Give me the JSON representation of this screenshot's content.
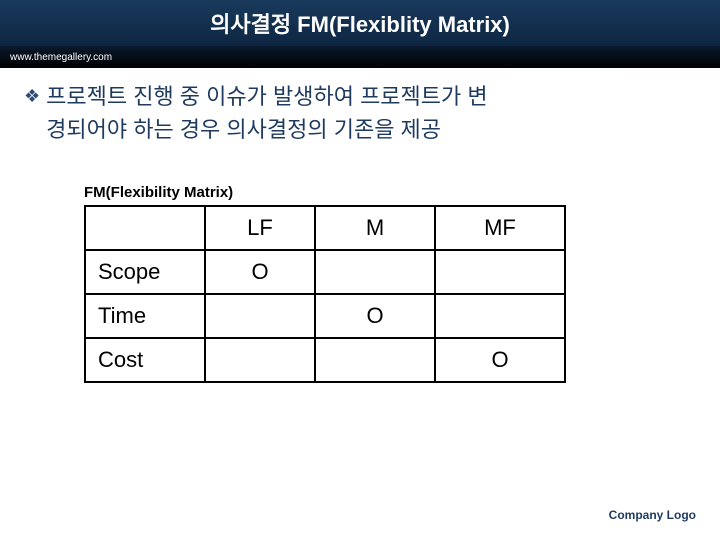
{
  "header": {
    "title": "의사결정 FM(Flexiblity Matrix)",
    "url": "www.themegallery.com"
  },
  "description": {
    "line1": "프로젝트 진행 중 이슈가 발생하여 프로젝트가 변",
    "line2": "경되어야 하는 경우 의사결정의 기존을 제공"
  },
  "table": {
    "title": "FM(Flexibility Matrix)",
    "columns": [
      "LF",
      "M",
      "MF"
    ],
    "rows": [
      {
        "label": "Scope",
        "values": [
          "O",
          "",
          ""
        ]
      },
      {
        "label": "Time",
        "values": [
          "",
          "O",
          ""
        ]
      },
      {
        "label": "Cost",
        "values": [
          "",
          "",
          "O"
        ]
      }
    ],
    "border_color": "#000000",
    "cell_fontsize": 22
  },
  "footer": {
    "logo_text": "Company Logo"
  },
  "colors": {
    "title_bg_top": "#1a3a5c",
    "title_bg_bottom": "#0d2642",
    "url_bg": "#000000",
    "desc_color": "#1e3a5f",
    "bullet_color": "#2a4d7a"
  }
}
